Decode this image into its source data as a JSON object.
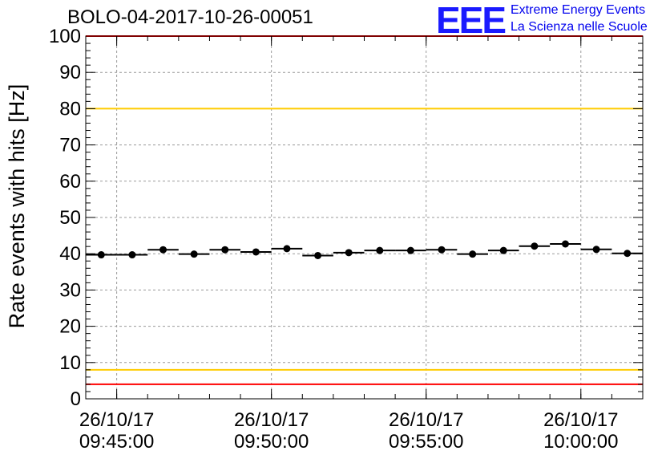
{
  "title": "BOLO-04-2017-10-26-00051",
  "logo": {
    "mark": "EEE",
    "line1": "Extreme Energy Events",
    "line2": "La Scienza nelle Scuole",
    "color": "#0000ee"
  },
  "chart_data": {
    "type": "scatter",
    "title": "BOLO-04-2017-10-26-00051",
    "xlabel": "",
    "ylabel": "Rate events with hits [Hz]",
    "ylim": [
      0,
      100
    ],
    "y_ticks": [
      0,
      10,
      20,
      30,
      40,
      50,
      60,
      70,
      80,
      90,
      100
    ],
    "x_tick_labels": [
      {
        "date": "26/10/17",
        "time": "09:45:00"
      },
      {
        "date": "26/10/17",
        "time": "09:50:00"
      },
      {
        "date": "26/10/17",
        "time": "09:55:00"
      },
      {
        "date": "26/10/17",
        "time": "10:00:00"
      }
    ],
    "x_range": [
      "09:44:00",
      "10:02:00"
    ],
    "grid": true,
    "reference_lines": [
      {
        "y": 100,
        "color": "#ff0000"
      },
      {
        "y": 80,
        "color": "#ffcc00"
      },
      {
        "y": 8,
        "color": "#ffcc00"
      },
      {
        "y": 4,
        "color": "#ff0000"
      }
    ],
    "series": [
      {
        "marker_color": "#000000",
        "x": [
          "09:44:30",
          "09:45:30",
          "09:46:30",
          "09:47:30",
          "09:48:30",
          "09:49:30",
          "09:50:30",
          "09:51:30",
          "09:52:30",
          "09:53:30",
          "09:54:30",
          "09:55:30",
          "09:56:30",
          "09:57:30",
          "09:58:30",
          "09:59:30",
          "10:00:30",
          "10:01:30"
        ],
        "values": [
          39.7,
          39.7,
          41.1,
          39.9,
          41.1,
          40.5,
          41.4,
          39.5,
          40.3,
          40.9,
          40.9,
          41.1,
          39.9,
          40.9,
          42.1,
          42.7,
          41.2,
          40.1
        ],
        "x_error": "±30 s"
      }
    ]
  }
}
